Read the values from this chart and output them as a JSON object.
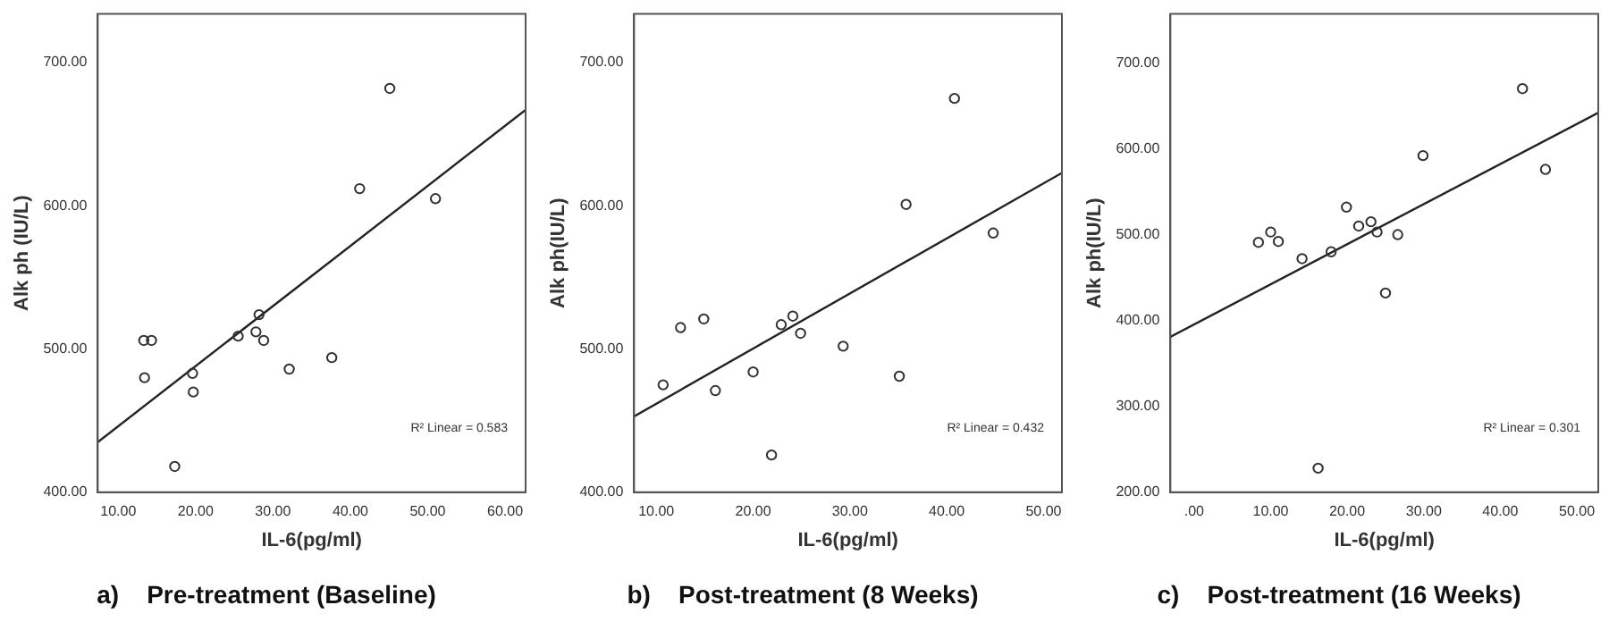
{
  "chart_data": [
    {
      "type": "scatter",
      "title": "a)    Pre-treatment (Baseline)",
      "xlabel": "IL-6(pg/ml)",
      "ylabel": "Alk ph (IU/L)",
      "xlim": [
        7.35,
        62.65
      ],
      "ylim": [
        400,
        734
      ],
      "xticks": [
        {
          "value": 10,
          "label": "10.00"
        },
        {
          "value": 20,
          "label": "20.00"
        },
        {
          "value": 30,
          "label": "30.00"
        },
        {
          "value": 40,
          "label": "40.00"
        },
        {
          "value": 50,
          "label": "50.00"
        },
        {
          "value": 60,
          "label": "60.00"
        }
      ],
      "yticks": [
        {
          "value": 400,
          "label": "400.00"
        },
        {
          "value": 500,
          "label": "500.00"
        },
        {
          "value": 600,
          "label": "600.00"
        },
        {
          "value": 700,
          "label": "700.00"
        }
      ],
      "grid": false,
      "legend": false,
      "series": [
        {
          "marker": "circle",
          "color": "#333333",
          "x": [
            13.3,
            14.3,
            13.4,
            17.3,
            19.6,
            19.7,
            25.5,
            27.8,
            28.2,
            28.8,
            32.1,
            37.6,
            41.2,
            45.1,
            51.0
          ],
          "values": [
            506,
            506,
            480,
            418,
            483,
            470,
            509,
            512,
            524,
            506,
            486,
            494,
            612,
            682,
            605
          ]
        },
        {
          "type": "line",
          "color": "#222222",
          "x": [
            7.35,
            62.65
          ],
          "values": [
            435,
            667
          ]
        }
      ],
      "annotations": [
        "R² Linear = 0.583"
      ]
    },
    {
      "type": "scatter",
      "title": "b)    Post-treatment (8 Weeks)",
      "xlabel": "IL-6(pg/ml)",
      "ylabel": "Alk ph(IU/L)",
      "xlim": [
        7.7,
        51.9
      ],
      "ylim": [
        400,
        734
      ],
      "xticks": [
        {
          "value": 10,
          "label": "10.00"
        },
        {
          "value": 20,
          "label": "20.00"
        },
        {
          "value": 30,
          "label": "30.00"
        },
        {
          "value": 40,
          "label": "40.00"
        },
        {
          "value": 50,
          "label": "50.00"
        }
      ],
      "yticks": [
        {
          "value": 400,
          "label": "400.00"
        },
        {
          "value": 500,
          "label": "500.00"
        },
        {
          "value": 600,
          "label": "600.00"
        },
        {
          "value": 700,
          "label": "700.00"
        }
      ],
      "grid": false,
      "legend": false,
      "series": [
        {
          "marker": "circle",
          "color": "#333333",
          "x": [
            10.7,
            12.5,
            14.9,
            16.1,
            20.0,
            21.9,
            22.9,
            24.1,
            24.9,
            29.3,
            35.1,
            35.8,
            40.8,
            44.8
          ],
          "values": [
            475,
            515,
            521,
            471,
            484,
            426,
            517,
            523,
            511,
            502,
            481,
            601,
            675,
            581
          ]
        },
        {
          "type": "line",
          "color": "#222222",
          "x": [
            7.7,
            51.9
          ],
          "values": [
            453,
            623
          ]
        }
      ],
      "annotations": [
        "R² Linear = 0.432"
      ]
    },
    {
      "type": "scatter",
      "title": "c)    Post-treatment (16 Weeks)",
      "xlabel": "IL-6(pg/ml)",
      "ylabel": "Alk ph(IU/L)",
      "xlim": [
        -3.1,
        52.8
      ],
      "ylim": [
        200,
        757
      ],
      "xticks": [
        {
          "value": 0,
          "label": ".00"
        },
        {
          "value": 10,
          "label": "10.00"
        },
        {
          "value": 20,
          "label": "20.00"
        },
        {
          "value": 30,
          "label": "30.00"
        },
        {
          "value": 40,
          "label": "40.00"
        },
        {
          "value": 50,
          "label": "50.00"
        }
      ],
      "yticks": [
        {
          "value": 200,
          "label": "200.00"
        },
        {
          "value": 300,
          "label": "300.00"
        },
        {
          "value": 400,
          "label": "400.00"
        },
        {
          "value": 500,
          "label": "500.00"
        },
        {
          "value": 600,
          "label": "600.00"
        },
        {
          "value": 700,
          "label": "700.00"
        }
      ],
      "grid": false,
      "legend": false,
      "series": [
        {
          "marker": "circle",
          "color": "#333333",
          "x": [
            8.4,
            10.0,
            11.0,
            14.1,
            17.9,
            19.9,
            21.5,
            23.1,
            23.9,
            25.0,
            26.6,
            16.2,
            29.9,
            42.9,
            45.9
          ],
          "values": [
            491,
            503,
            492,
            472,
            480,
            532,
            510,
            515,
            503,
            432,
            500,
            228,
            592,
            670,
            576
          ]
        },
        {
          "type": "line",
          "color": "#222222",
          "x": [
            -3.1,
            52.8
          ],
          "values": [
            381,
            642
          ]
        }
      ],
      "annotations": [
        "R² Linear = 0.301"
      ]
    }
  ]
}
